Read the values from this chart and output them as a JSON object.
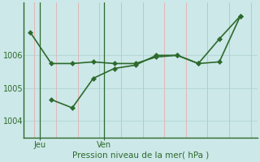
{
  "line1_x": [
    0,
    1,
    2,
    3,
    4,
    5,
    6,
    7,
    8,
    9,
    10
  ],
  "line1_y": [
    1006.7,
    1005.75,
    1005.75,
    1005.8,
    1005.75,
    1005.75,
    1005.95,
    1006.0,
    1005.75,
    1005.8,
    1007.2
  ],
  "line2_x": [
    1,
    2,
    3,
    4,
    5,
    6,
    7,
    8,
    9,
    10
  ],
  "line2_y": [
    1004.65,
    1004.4,
    1005.3,
    1005.6,
    1005.7,
    1006.0,
    1006.0,
    1005.75,
    1006.5,
    1007.2
  ],
  "jeu_x": 0.45,
  "ven_x": 3.5,
  "day_labels": [
    "Jeu",
    "Ven"
  ],
  "yticks": [
    1004,
    1005,
    1006
  ],
  "ylim": [
    1003.5,
    1007.6
  ],
  "xlim": [
    -0.3,
    10.8
  ],
  "n_vgrid": 11,
  "xlabel": "Pression niveau de la mer( hPa )",
  "line_color": "#2d6a2d",
  "bg_color": "#cce8e8",
  "hgrid_color": "#b8d8d8",
  "vgrid_color": "#e0b8b8",
  "marker": "D",
  "markersize": 3.0,
  "linewidth": 1.2
}
